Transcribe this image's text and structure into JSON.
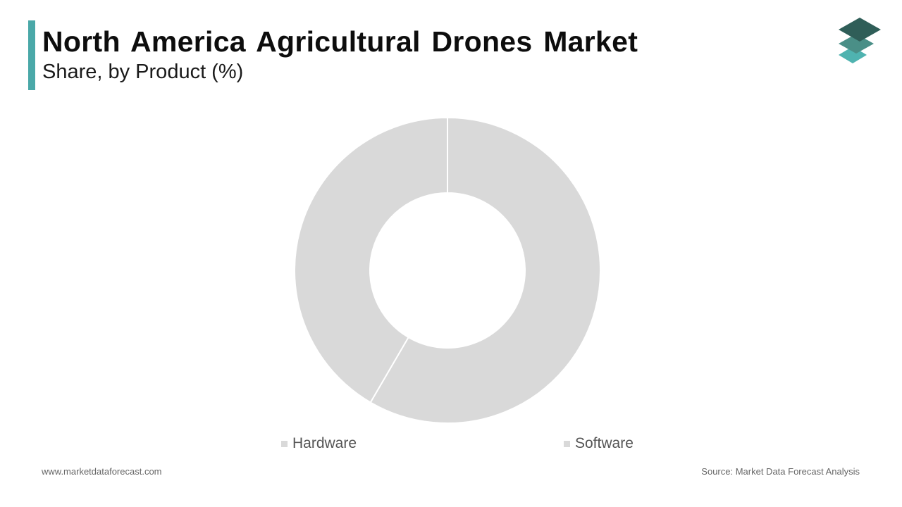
{
  "header": {
    "title": "North America Agricultural Drones Market",
    "subtitle": "Share, by Product (%)"
  },
  "colors": {
    "accent": "#4aa8a8",
    "slice": "#d9d9d9",
    "slice_border": "#ffffff",
    "legend_swatch": "#d9d9d9",
    "logo_top": "#2f5e58",
    "logo_middle": "#4a8f87",
    "logo_bottom": "#4fb3b0"
  },
  "logo": {
    "icon": "stacked-layers-logo-icon"
  },
  "chart_data": {
    "type": "pie",
    "variant": "donut",
    "title": "North America Agricultural Drones Market",
    "subtitle": "Share, by Product (%)",
    "categories": [
      "Hardware",
      "Software"
    ],
    "values": [
      58.4,
      41.6
    ],
    "unit": "%",
    "start_angle_deg": 0,
    "direction": "clockwise",
    "legend_position": "bottom"
  },
  "legend": {
    "items": [
      {
        "label": "Hardware"
      },
      {
        "label": "Software"
      }
    ]
  },
  "footer": {
    "website": "www.marketdataforecast.com",
    "source": "Source: Market Data Forecast Analysis"
  }
}
